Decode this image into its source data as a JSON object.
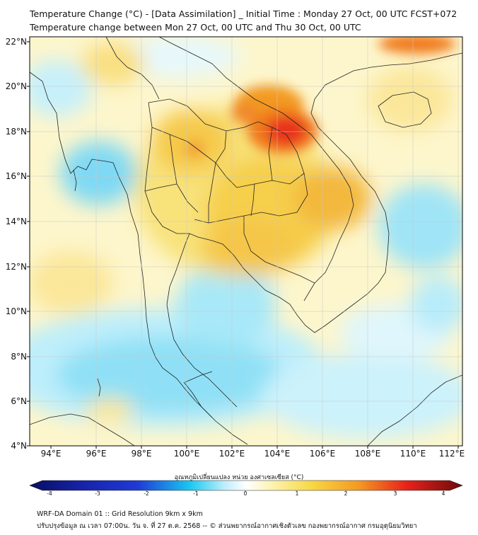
{
  "header": {
    "title_line1": "Temperature Change (°C) - [Data Assimilation] _ Initial Time : Monday 27 Oct, 00 UTC FCST+072",
    "title_line2": "Temperature change between Mon 27 Oct, 00 UTC and Thu 30 Oct, 00 UTC"
  },
  "axes": {
    "lat_labels": [
      "22°N",
      "20°N",
      "18°N",
      "16°N",
      "14°N",
      "12°N",
      "10°N",
      "8°N",
      "6°N",
      "4°N"
    ],
    "lon_labels": [
      "94°E",
      "96°E",
      "98°E",
      "100°E",
      "102°E",
      "104°E",
      "106°E",
      "108°E",
      "110°E",
      "112°E"
    ]
  },
  "colorbar": {
    "title": "อุณหภูมิเปลี่ยนแปลง หน่วย องศาเซลเซียส (°C)",
    "ticks": [
      "-4",
      "-3",
      "-2",
      "-1",
      "0",
      "1",
      "2",
      "3",
      "4"
    ],
    "colors": {
      "dark_blue": "#08105e",
      "blue": "#1f3bd6",
      "cyan": "#19c8f0",
      "light_cyan": "#bdeefb",
      "white": "#ffffff",
      "light_yellow": "#fdf3b0",
      "yellow": "#f8d845",
      "orange": "#f39a22",
      "red": "#e8221a",
      "dark_red": "#6b0a0a"
    }
  },
  "footer": {
    "line1": "WRF-DA Domain 01 :: Grid Resolution 9km x 9km",
    "line2": "ปรับปรุงข้อมูล ณ เวลา 07:00น. วัน จ. ที่ 27 ต.ค. 2568 -- © ส่วนพยากรณ์อากาศเชิงตัวเลข กองพยากรณ์อากาศ กรมอุตุนิยมวิทยา"
  }
}
